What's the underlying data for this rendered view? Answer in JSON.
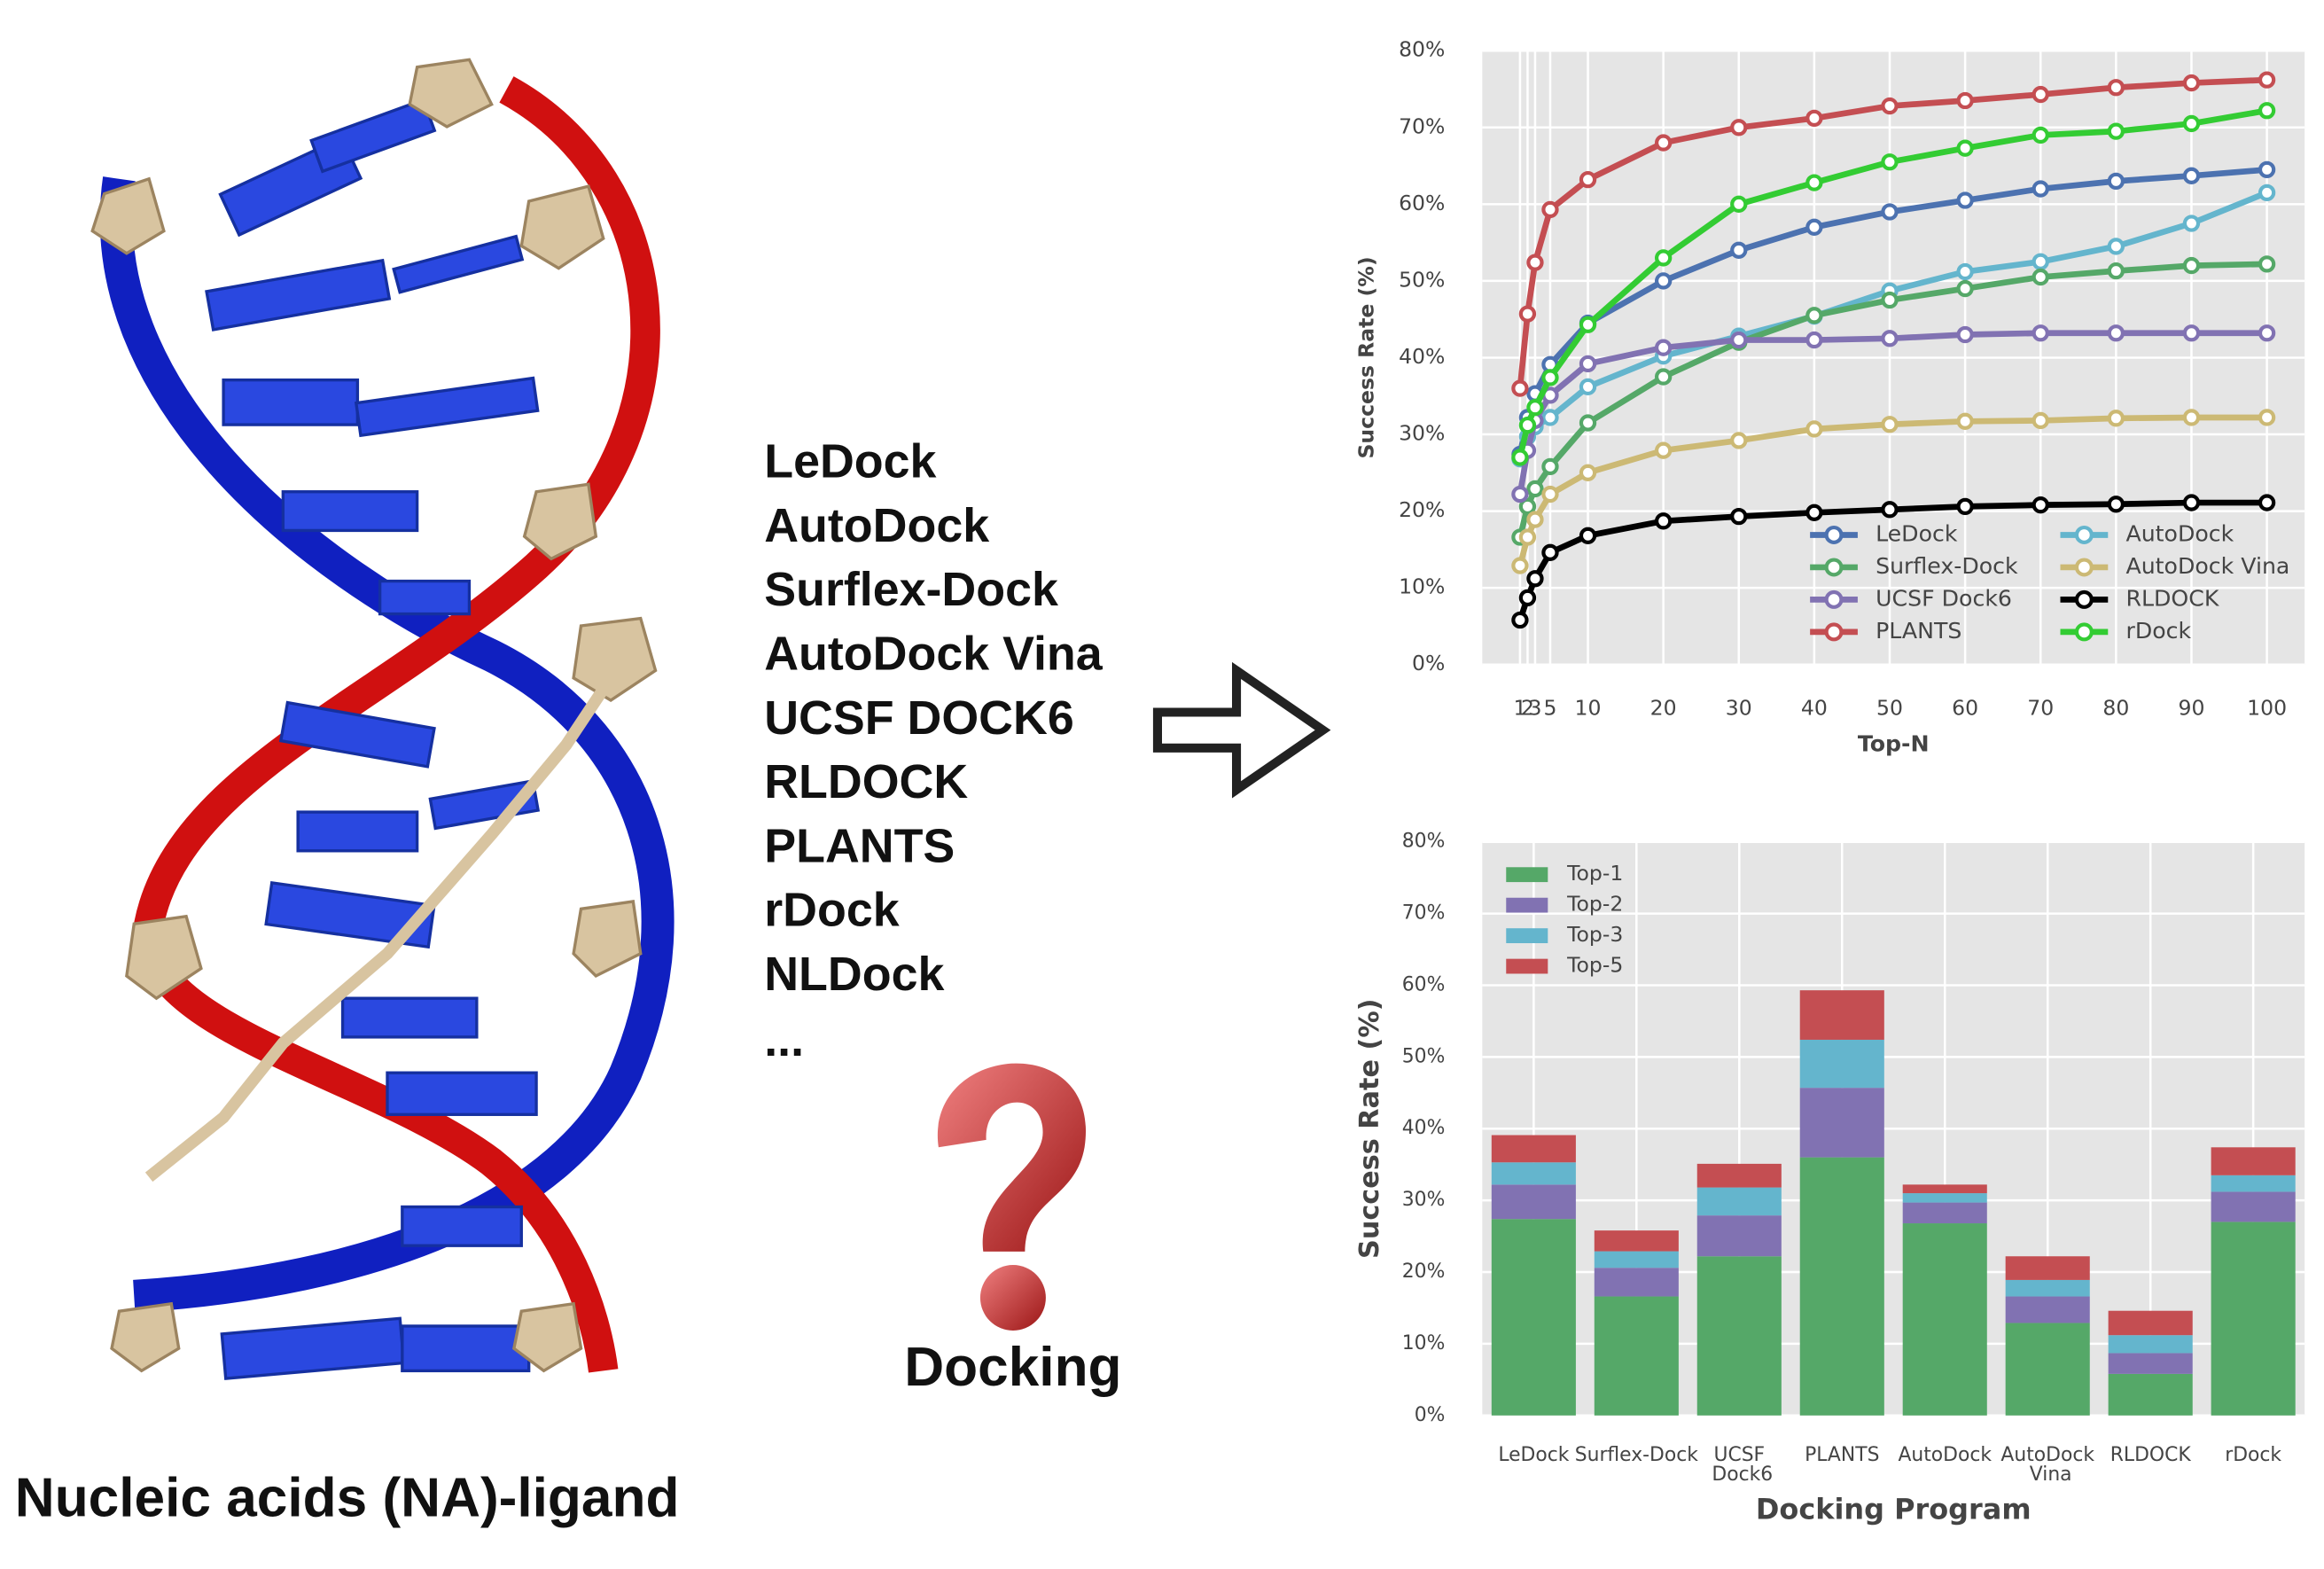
{
  "labels": {
    "programs": [
      "LeDock",
      "AutoDock",
      "Surflex-Dock",
      "AutoDock Vina",
      "UCSF DOCK6",
      "RLDOCK",
      "PLANTS",
      "rDock",
      "NLDock"
    ],
    "ellipsis": "...",
    "docking": "Docking",
    "caption": "Nucleic acids (NA)-ligand"
  },
  "chart_data": [
    {
      "type": "line",
      "xlabel": "Top-N",
      "ylabel": "Success Rate (%)",
      "x": [
        1,
        2,
        3,
        5,
        10,
        20,
        30,
        40,
        50,
        60,
        70,
        80,
        90,
        100
      ],
      "xlim": [
        -4,
        105
      ],
      "xticks": [
        1,
        2,
        3,
        5,
        10,
        20,
        30,
        40,
        50,
        60,
        70,
        80,
        90,
        100
      ],
      "ylim": [
        0,
        80
      ],
      "yticks": [
        {
          "value": 0,
          "label": "0%"
        },
        {
          "value": 10,
          "label": "10%"
        },
        {
          "value": 20,
          "label": "20%"
        },
        {
          "value": 30,
          "label": "30%"
        },
        {
          "value": 40,
          "label": "40%"
        },
        {
          "value": 50,
          "label": "50%"
        },
        {
          "value": 60,
          "label": "60%"
        },
        {
          "value": 70,
          "label": "70%"
        },
        {
          "value": 80,
          "label": "80%"
        }
      ],
      "grid": true,
      "legend": "lower right",
      "series": [
        {
          "name": "LeDock",
          "color": "#4c72b0",
          "values": [
            27.4,
            32.2,
            35.3,
            39.1,
            44.5,
            50,
            54,
            57,
            59,
            60.5,
            62,
            63,
            63.7,
            64.5
          ]
        },
        {
          "name": "AutoDock",
          "color": "#64b5cd",
          "values": [
            26.8,
            29.7,
            31,
            32.2,
            36.2,
            40.2,
            42.8,
            45.4,
            48.7,
            51.2,
            52.5,
            54.5,
            57.5,
            61.5
          ]
        },
        {
          "name": "Surflex-Dock",
          "color": "#55a868",
          "values": [
            16.6,
            20.6,
            22.9,
            25.8,
            31.5,
            37.5,
            42,
            45.5,
            47.5,
            49,
            50.5,
            51.3,
            52,
            52.2
          ]
        },
        {
          "name": "AutoDock Vina",
          "color": "#ccb974",
          "values": [
            12.9,
            16.6,
            18.9,
            22.2,
            25,
            27.9,
            29.2,
            30.7,
            31.3,
            31.7,
            31.8,
            32.1,
            32.2,
            32.2
          ]
        },
        {
          "name": "UCSF Dock6",
          "color": "#8172b2",
          "values": [
            22.2,
            27.9,
            31.8,
            35.1,
            39.2,
            41.3,
            42.3,
            42.3,
            42.5,
            43,
            43.2,
            43.2,
            43.2,
            43.2
          ]
        },
        {
          "name": "RLDOCK",
          "color": "#000000",
          "values": [
            5.8,
            8.7,
            11.2,
            14.6,
            16.8,
            18.7,
            19.3,
            19.8,
            20.2,
            20.6,
            20.8,
            20.9,
            21.1,
            21.1
          ]
        },
        {
          "name": "PLANTS",
          "color": "#c44e52",
          "values": [
            36,
            45.7,
            52.4,
            59.3,
            63.2,
            68,
            70,
            71.2,
            72.8,
            73.5,
            74.3,
            75.2,
            75.8,
            76.2
          ]
        },
        {
          "name": "rDock",
          "color": "#33cc33",
          "values": [
            27,
            31.2,
            33.5,
            37.4,
            44.3,
            53,
            60,
            62.8,
            65.5,
            67.3,
            69,
            69.5,
            70.5,
            72.2
          ]
        }
      ]
    },
    {
      "type": "bar",
      "stacked": true,
      "xlabel": "Docking Program",
      "ylabel": "Success Rate (%)",
      "categories": [
        "LeDock",
        "Surflex-Dock",
        "UCSF Dock6",
        "PLANTS",
        "AutoDock",
        "AutoDock Vina",
        "RLDOCK",
        "rDock"
      ],
      "ylim": [
        0,
        80
      ],
      "yticks": [
        {
          "value": 0,
          "label": "0%"
        },
        {
          "value": 10,
          "label": "10%"
        },
        {
          "value": 20,
          "label": "20%"
        },
        {
          "value": 30,
          "label": "30%"
        },
        {
          "value": 40,
          "label": "40%"
        },
        {
          "value": 50,
          "label": "50%"
        },
        {
          "value": 60,
          "label": "60%"
        },
        {
          "value": 70,
          "label": "70%"
        },
        {
          "value": 80,
          "label": "80%"
        }
      ],
      "grid": true,
      "legend": "upper left",
      "series": [
        {
          "name": "Top-1",
          "color": "#55a868",
          "values": [
            27.4,
            16.6,
            22.2,
            36,
            26.8,
            12.9,
            5.8,
            27
          ]
        },
        {
          "name": "Top-2",
          "color": "#8172b2",
          "values": [
            4.8,
            4,
            5.7,
            9.7,
            2.9,
            3.7,
            2.9,
            4.2
          ]
        },
        {
          "name": "Top-3",
          "color": "#64b5cd",
          "values": [
            3.1,
            2.3,
            3.9,
            6.7,
            1.3,
            2.3,
            2.5,
            2.3
          ]
        },
        {
          "name": "Top-5",
          "color": "#c44e52",
          "values": [
            3.8,
            2.9,
            3.3,
            6.9,
            1.2,
            3.3,
            3.4,
            3.9
          ]
        }
      ]
    }
  ]
}
